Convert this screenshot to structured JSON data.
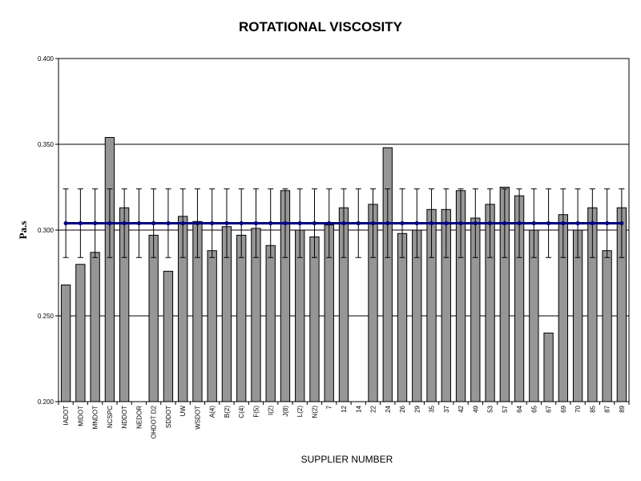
{
  "chart_data": {
    "type": "bar",
    "title": "ROTATIONAL VISCOSITY",
    "xlabel": "SUPPLIER NUMBER",
    "ylabel": "Pa.s",
    "ylim": [
      0.2,
      0.4
    ],
    "yticks": [
      "0.200",
      "0.250",
      "0.300",
      "0.350",
      "0.400"
    ],
    "grid": "horizontal",
    "categories": [
      "IADOT",
      "MIDOT",
      "MNDOT",
      "NCSPC",
      "NDDOT",
      "NEDOR",
      "OHDOT D2",
      "SDDOT",
      "UW",
      "WSDOT",
      "A(4)",
      "B(2)",
      "C(4)",
      "F(5)",
      "I(2)",
      "J(8)",
      "L(2)",
      "N(2)",
      "7",
      "12",
      "14",
      "22",
      "24",
      "26",
      "29",
      "35",
      "37",
      "42",
      "49",
      "53",
      "57",
      "64",
      "65",
      "67",
      "69",
      "70",
      "85",
      "87",
      "89"
    ],
    "values": [
      0.268,
      0.28,
      0.287,
      0.354,
      0.313,
      null,
      0.297,
      0.276,
      0.308,
      0.305,
      0.288,
      0.302,
      0.297,
      0.301,
      0.291,
      0.323,
      0.3,
      0.296,
      0.303,
      0.313,
      null,
      0.315,
      0.348,
      0.298,
      0.3,
      0.312,
      0.312,
      0.323,
      0.307,
      0.315,
      0.325,
      0.32,
      0.3,
      0.24,
      0.309,
      0.3,
      0.313,
      0.288,
      0.313
    ],
    "mean": 0.304,
    "error_bar": {
      "upper": 0.324,
      "lower": 0.284
    },
    "colors": {
      "bar": "#969696",
      "mean_line": "#000080",
      "error_bar": "#000000"
    }
  }
}
